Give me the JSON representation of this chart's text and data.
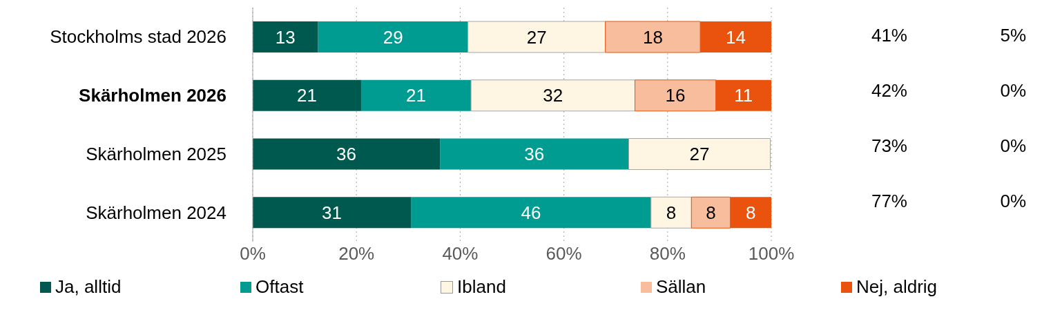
{
  "chart_data": {
    "type": "bar",
    "orientation": "horizontal",
    "stacked": true,
    "categories": [
      "Stockholms stad 2026",
      "Skärholmen 2026",
      "Skärholmen 2025",
      "Skärholmen 2024"
    ],
    "series": [
      {
        "name": "Ja, alltid",
        "color": "#00594f",
        "values": [
          12.6,
          20.9,
          36.1,
          30.5
        ],
        "value_labels": [
          "13",
          "21",
          "36",
          "31"
        ]
      },
      {
        "name": "Oftast",
        "color": "#009b91",
        "values": [
          28.9,
          21.2,
          36.4,
          46.3
        ],
        "value_labels": [
          "29",
          "21",
          "36",
          "46"
        ]
      },
      {
        "name": "Ibland",
        "color": "#fef5e2",
        "values": [
          26.5,
          31.6,
          27.3,
          7.8
        ],
        "value_labels": [
          "27",
          "32",
          "27",
          "8"
        ]
      },
      {
        "name": "Sällan",
        "color": "#f8bd9c",
        "values": [
          18.3,
          15.6,
          null,
          7.5
        ],
        "value_labels": [
          "18",
          "16",
          null,
          "8"
        ]
      },
      {
        "name": "Nej, aldrig",
        "color": "#e9530e",
        "values": [
          13.7,
          10.7,
          null,
          7.9
        ],
        "value_labels": [
          "14",
          "11",
          null,
          "8"
        ]
      }
    ],
    "xlim": [
      0,
      100
    ],
    "xticks": [
      {
        "value": 0,
        "label": "0%"
      },
      {
        "value": 20,
        "label": "20%"
      },
      {
        "value": 40,
        "label": "40%"
      },
      {
        "value": 60,
        "label": "60%"
      },
      {
        "value": 80,
        "label": "80%"
      },
      {
        "value": 100,
        "label": "100%"
      }
    ],
    "grid": "x",
    "legend": "bottom",
    "annotations": [
      "41%",
      "42%",
      "73%",
      "77%",
      "5%",
      "0%",
      "0%",
      "0%"
    ]
  }
}
